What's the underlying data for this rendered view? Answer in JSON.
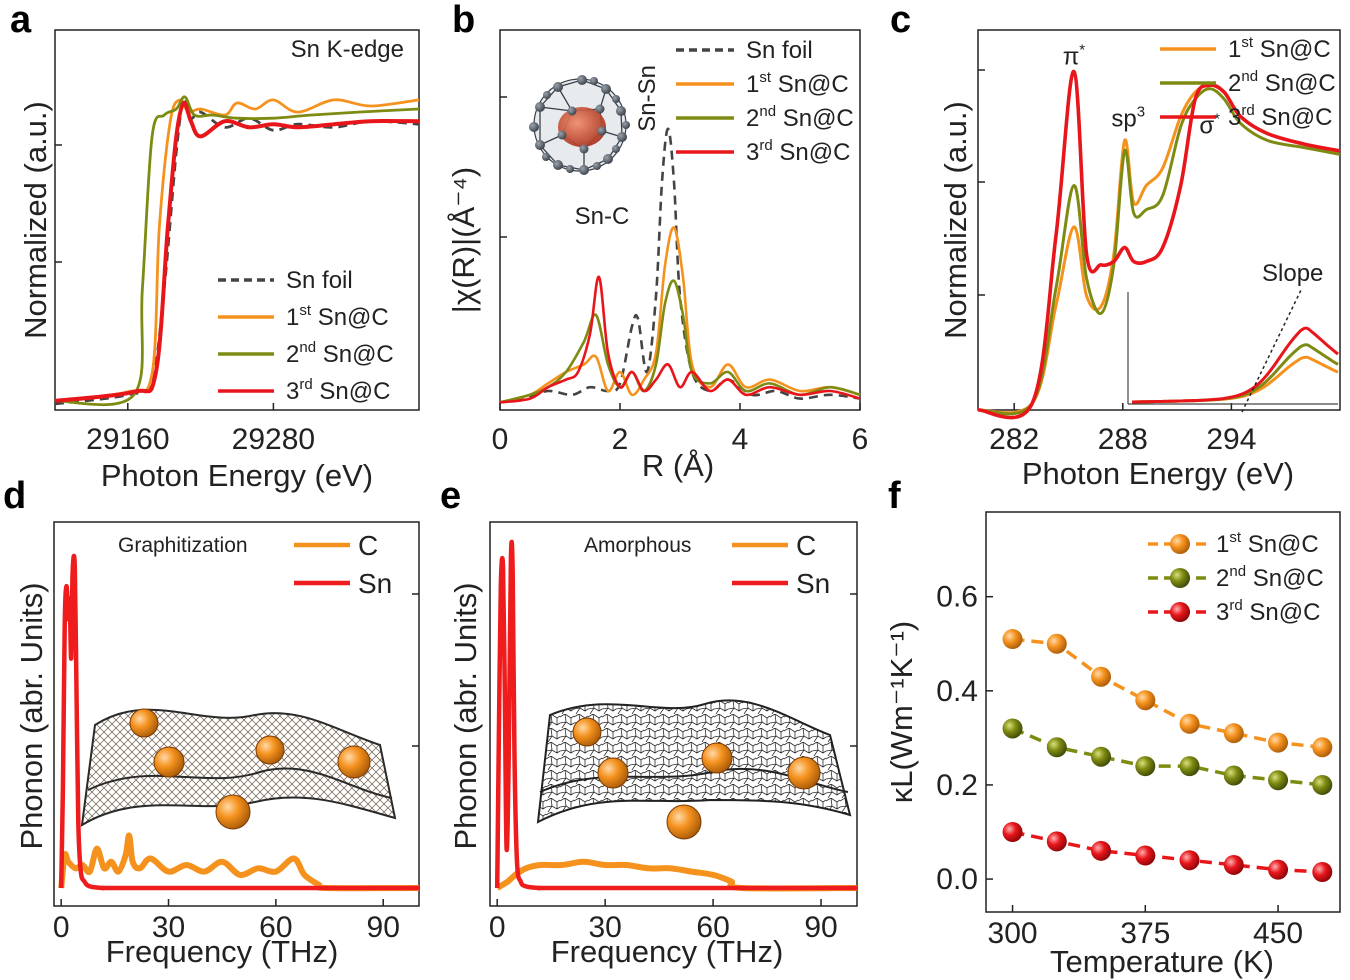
{
  "colors": {
    "foil": "#444444",
    "c1": "#f5921e",
    "c2": "#7e8b12",
    "c3": "#e8161b",
    "phonon_c": "#f5921e",
    "phonon_sn": "#ee1c1c"
  },
  "icons": {
    "fullerene": "fullerene-sn-cluster-icon",
    "sheet": "carbon-sheet-with-sn-particles-icon"
  },
  "chart_data": [
    {
      "panel": "a",
      "type": "line",
      "title": "Sn K-edge",
      "xlabel": "Photon Energy (eV)",
      "ylabel": "Normalized  (a.u.)",
      "xlim": [
        29100,
        29400
      ],
      "ylim": [
        0,
        1.25
      ],
      "xticks": [
        29160,
        29280
      ],
      "xtick_labels": [
        "29160",
        "29280"
      ],
      "series": [
        {
          "name": "Sn foil",
          "sup": "",
          "label": "Sn foil",
          "style": "dashed",
          "x": [
            29100,
            29160,
            29180,
            29190,
            29200,
            29206,
            29212,
            29220,
            29240,
            29260,
            29280,
            29300,
            29330,
            29360,
            29400
          ],
          "y": [
            0.02,
            0.05,
            0.1,
            0.4,
            0.85,
            1.02,
            0.96,
            0.98,
            0.93,
            0.96,
            0.92,
            0.94,
            0.93,
            0.95,
            0.94
          ]
        },
        {
          "name": "1st Sn@C",
          "sup": "st",
          "label": " Sn@C",
          "style": "solid",
          "x": [
            29100,
            29160,
            29180,
            29186,
            29195,
            29203,
            29210,
            29220,
            29240,
            29250,
            29265,
            29280,
            29300,
            29330,
            29360,
            29400
          ],
          "y": [
            0.03,
            0.06,
            0.12,
            0.6,
            0.95,
            1.02,
            0.98,
            0.99,
            0.97,
            1.01,
            0.99,
            1.02,
            0.98,
            1.02,
            1.0,
            1.02
          ]
        },
        {
          "name": "2nd Sn@C",
          "sup": "nd",
          "label": " Sn@C",
          "style": "solid",
          "x": [
            29100,
            29165,
            29172,
            29180,
            29190,
            29200,
            29207,
            29215,
            29230,
            29250,
            29280,
            29310,
            29350,
            29400
          ],
          "y": [
            0.03,
            0.05,
            0.4,
            0.9,
            0.97,
            0.99,
            1.03,
            0.97,
            0.97,
            0.96,
            0.96,
            0.97,
            0.98,
            0.99
          ]
        },
        {
          "name": "3rd Sn@C",
          "sup": "rd",
          "label": " Sn@C",
          "style": "solid",
          "x": [
            29100,
            29165,
            29183,
            29193,
            29200,
            29206,
            29212,
            29220,
            29240,
            29260,
            29280,
            29300,
            29330,
            29360,
            29400
          ],
          "y": [
            0.03,
            0.06,
            0.12,
            0.6,
            0.9,
            1.01,
            0.95,
            0.9,
            0.95,
            0.93,
            0.94,
            0.93,
            0.94,
            0.95,
            0.95
          ]
        }
      ]
    },
    {
      "panel": "b",
      "type": "line",
      "xlabel": "R (Å)",
      "ylabel": "|χ(R)|(Å⁻⁴)",
      "xlim": [
        0,
        6
      ],
      "ylim": [
        0,
        1.0
      ],
      "xticks": [
        0,
        2,
        4,
        6
      ],
      "xtick_labels": [
        "0",
        "2",
        "4",
        "6"
      ],
      "annotations": [
        {
          "text": "Sn-C",
          "x": 1.7,
          "y": 0.49
        },
        {
          "text": "Sn-Sn",
          "x": 2.75,
          "y": 0.82
        }
      ],
      "series": [
        {
          "name": "Sn foil",
          "sup": "",
          "label": "Sn foil",
          "style": "dashed",
          "x": [
            0,
            0.4,
            0.8,
            1.2,
            1.5,
            1.8,
            2.0,
            2.2,
            2.3,
            2.45,
            2.6,
            2.7,
            2.8,
            2.9,
            3.0,
            3.2,
            3.5,
            3.8,
            4.2,
            4.6,
            5.0,
            5.5,
            6.0
          ],
          "y": [
            0.02,
            0.03,
            0.05,
            0.04,
            0.06,
            0.05,
            0.07,
            0.22,
            0.24,
            0.1,
            0.3,
            0.6,
            0.74,
            0.6,
            0.3,
            0.1,
            0.05,
            0.08,
            0.04,
            0.05,
            0.03,
            0.04,
            0.03
          ]
        },
        {
          "name": "1st Sn@C",
          "sup": "st",
          "label": " Sn@C",
          "style": "solid",
          "x": [
            0,
            0.5,
            0.8,
            1.1,
            1.4,
            1.6,
            1.8,
            2.0,
            2.2,
            2.4,
            2.6,
            2.75,
            2.9,
            3.05,
            3.2,
            3.5,
            3.8,
            4.1,
            4.5,
            5.0,
            5.5,
            6.0
          ],
          "y": [
            0.02,
            0.04,
            0.07,
            0.1,
            0.12,
            0.14,
            0.05,
            0.1,
            0.04,
            0.08,
            0.15,
            0.38,
            0.48,
            0.35,
            0.12,
            0.06,
            0.12,
            0.06,
            0.08,
            0.05,
            0.06,
            0.04
          ]
        },
        {
          "name": "2nd Sn@C",
          "sup": "nd",
          "label": " Sn@C",
          "style": "solid",
          "x": [
            0,
            0.5,
            0.8,
            1.1,
            1.4,
            1.6,
            1.8,
            2.0,
            2.2,
            2.4,
            2.6,
            2.75,
            2.9,
            3.05,
            3.2,
            3.5,
            3.8,
            4.1,
            4.5,
            5.0,
            5.5,
            6.0
          ],
          "y": [
            0.02,
            0.04,
            0.06,
            0.1,
            0.18,
            0.25,
            0.12,
            0.06,
            0.1,
            0.05,
            0.12,
            0.28,
            0.34,
            0.25,
            0.1,
            0.07,
            0.1,
            0.05,
            0.07,
            0.04,
            0.06,
            0.04
          ]
        },
        {
          "name": "3rd Sn@C",
          "sup": "rd",
          "label": " Sn@C",
          "style": "solid",
          "x": [
            0,
            0.5,
            0.8,
            1.1,
            1.3,
            1.5,
            1.65,
            1.8,
            2.0,
            2.2,
            2.4,
            2.6,
            2.8,
            3.0,
            3.2,
            3.5,
            3.8,
            4.1,
            4.5,
            5.0,
            5.5,
            6.0
          ],
          "y": [
            0.02,
            0.03,
            0.06,
            0.08,
            0.1,
            0.2,
            0.35,
            0.15,
            0.06,
            0.1,
            0.05,
            0.08,
            0.12,
            0.06,
            0.1,
            0.05,
            0.08,
            0.04,
            0.06,
            0.04,
            0.05,
            0.03
          ]
        }
      ],
      "inset": "fullerene-sn-cluster-icon"
    },
    {
      "panel": "c",
      "type": "line",
      "xlabel": "Photon Energy (eV)",
      "ylabel": "Normalized (a.u.)",
      "xlim": [
        280,
        300
      ],
      "ylim": [
        0,
        1.1
      ],
      "xticks": [
        282,
        288,
        294
      ],
      "xtick_labels": [
        "282",
        "288",
        "294"
      ],
      "annotations": [
        {
          "text": "π",
          "sup": "*",
          "x": 285.3,
          "y": 1.0
        },
        {
          "text": "sp",
          "sup": "3",
          "x": 288.3,
          "y": 0.82
        },
        {
          "text": "σ",
          "sup": "*",
          "x": 292.8,
          "y": 0.8
        }
      ],
      "series": [
        {
          "name": "1st Sn@C",
          "sup": "st",
          "label": " Sn@C",
          "style": "solid",
          "x": [
            280,
            283,
            284.3,
            285.3,
            286,
            286.8,
            287.5,
            288.1,
            288.6,
            289.3,
            290.2,
            291.2,
            292,
            292.8,
            293.6,
            294.5,
            296,
            298,
            300
          ],
          "y": [
            0,
            0.02,
            0.3,
            0.53,
            0.33,
            0.3,
            0.45,
            0.78,
            0.6,
            0.65,
            0.7,
            0.85,
            0.92,
            0.94,
            0.92,
            0.85,
            0.8,
            0.77,
            0.75
          ]
        },
        {
          "name": "2nd Sn@C",
          "sup": "nd",
          "label": " Sn@C",
          "style": "solid",
          "x": [
            280,
            283,
            284.3,
            285.3,
            286,
            286.8,
            287.5,
            288.1,
            288.6,
            289.3,
            290.2,
            291.2,
            292,
            292.8,
            293.6,
            294.5,
            296,
            298,
            300
          ],
          "y": [
            0,
            0.02,
            0.35,
            0.65,
            0.38,
            0.28,
            0.42,
            0.75,
            0.57,
            0.58,
            0.62,
            0.82,
            0.9,
            0.93,
            0.9,
            0.83,
            0.78,
            0.76,
            0.74
          ]
        },
        {
          "name": "3rd Sn@C",
          "sup": "rd",
          "label": " Sn@C",
          "style": "solid",
          "x": [
            280,
            283,
            284.3,
            285.3,
            286,
            286.8,
            287.5,
            288.1,
            288.6,
            289.3,
            290.2,
            291.2,
            292,
            292.8,
            293.6,
            294.5,
            296,
            298,
            300
          ],
          "y": [
            0,
            0.02,
            0.5,
            0.98,
            0.45,
            0.42,
            0.43,
            0.47,
            0.43,
            0.43,
            0.47,
            0.65,
            0.9,
            0.94,
            0.92,
            0.85,
            0.8,
            0.77,
            0.75
          ]
        }
      ],
      "inset": {
        "label": "Slope",
        "peaks": {
          "1st Sn@C": 0.5,
          "2nd Sn@C": 0.65,
          "3rd Sn@C": 0.85
        }
      }
    },
    {
      "panel": "d",
      "type": "line",
      "title": "Graphitization",
      "xlabel": "Frequency (THz)",
      "ylabel": "Phonon (abr. Units)",
      "xlim": [
        -2,
        100
      ],
      "ylim": [
        0,
        1.0
      ],
      "xticks": [
        0,
        30,
        60,
        90
      ],
      "xtick_labels": [
        "0",
        "30",
        "60",
        "90"
      ],
      "series": [
        {
          "name": "C",
          "label": "C",
          "x": [
            0,
            1,
            2,
            4,
            6,
            8,
            10,
            12,
            14,
            16,
            18,
            19,
            20,
            22,
            25,
            30,
            35,
            40,
            45,
            50,
            55,
            60,
            65,
            68,
            72,
            74,
            100
          ],
          "y": [
            0,
            0.1,
            0.08,
            0.06,
            0.07,
            0.05,
            0.12,
            0.06,
            0.08,
            0.05,
            0.1,
            0.16,
            0.08,
            0.06,
            0.09,
            0.05,
            0.07,
            0.05,
            0.08,
            0.04,
            0.06,
            0.05,
            0.09,
            0.04,
            0.01,
            0,
            0
          ]
        },
        {
          "name": "Sn",
          "label": "Sn",
          "x": [
            0,
            0.5,
            1,
            1.5,
            2,
            2.4,
            2.8,
            3.2,
            3.8,
            4.3,
            4.8,
            5.5,
            6.5,
            8,
            12,
            20,
            100
          ],
          "y": [
            0,
            0.3,
            0.8,
            0.92,
            0.82,
            0.88,
            0.7,
            0.96,
            0.98,
            0.6,
            0.2,
            0.05,
            0.02,
            0.005,
            0,
            0,
            0
          ]
        }
      ],
      "inset": "carbon-sheet-with-sn-particles-icon"
    },
    {
      "panel": "e",
      "type": "line",
      "title": "Amorphous",
      "xlabel": "Frequency (THz)",
      "ylabel": "Phonon (abr. Units)",
      "xlim": [
        -2,
        100
      ],
      "ylim": [
        0,
        1.0
      ],
      "xticks": [
        0,
        30,
        60,
        90
      ],
      "xtick_labels": [
        "0",
        "30",
        "60",
        "90"
      ],
      "series": [
        {
          "name": "C",
          "label": "C",
          "x": [
            0,
            3,
            5,
            8,
            12,
            18,
            24,
            30,
            36,
            42,
            48,
            54,
            60,
            65,
            68,
            100
          ],
          "y": [
            0,
            0.02,
            0.04,
            0.06,
            0.07,
            0.07,
            0.08,
            0.07,
            0.07,
            0.06,
            0.06,
            0.05,
            0.04,
            0.02,
            0,
            0
          ]
        },
        {
          "name": "Sn",
          "label": "Sn",
          "x": [
            0,
            0.5,
            1,
            1.6,
            2.1,
            2.6,
            3.2,
            3.8,
            4.3,
            4.8,
            5.5,
            6.5,
            8,
            12,
            20,
            100
          ],
          "y": [
            0,
            0.5,
            0.92,
            0.98,
            0.6,
            0.12,
            0.4,
            1.0,
            0.96,
            0.4,
            0.08,
            0.02,
            0.005,
            0,
            0,
            0
          ]
        }
      ],
      "inset": "carbon-sheet-with-sn-particles-icon"
    },
    {
      "panel": "f",
      "type": "line",
      "xlabel": "Temperature (K)",
      "ylabel": "κL(Wm⁻¹K⁻¹)",
      "xlim": [
        285,
        485
      ],
      "ylim": [
        -0.07,
        0.78
      ],
      "xticks": [
        300,
        375,
        450
      ],
      "xtick_labels": [
        "300",
        "375",
        "450"
      ],
      "yticks": [
        0.0,
        0.2,
        0.4,
        0.6
      ],
      "ytick_labels": [
        "0.0",
        "0.2",
        "0.4",
        "0.6"
      ],
      "series": [
        {
          "name": "1st Sn@C",
          "sup": "st",
          "label": "  Sn@C",
          "x": [
            300,
            325,
            350,
            375,
            400,
            425,
            450,
            475
          ],
          "y": [
            0.51,
            0.5,
            0.43,
            0.38,
            0.33,
            0.31,
            0.29,
            0.28
          ]
        },
        {
          "name": "2nd Sn@C",
          "sup": "nd",
          "label": " Sn@C",
          "x": [
            300,
            325,
            350,
            375,
            400,
            425,
            450,
            475
          ],
          "y": [
            0.32,
            0.28,
            0.26,
            0.24,
            0.24,
            0.22,
            0.21,
            0.2
          ]
        },
        {
          "name": "3rd Sn@C",
          "sup": "rd",
          "label": "  Sn@C",
          "x": [
            300,
            325,
            350,
            375,
            400,
            425,
            450,
            475
          ],
          "y": [
            0.1,
            0.08,
            0.06,
            0.05,
            0.04,
            0.03,
            0.02,
            0.015
          ]
        }
      ]
    }
  ]
}
